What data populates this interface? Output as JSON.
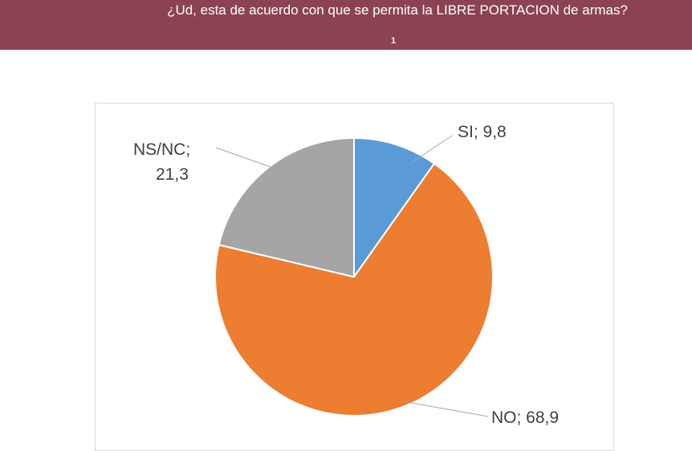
{
  "header": {
    "title": "¿Ud, esta de acuerdo con que se permita la LIBRE PORTACION de armas?",
    "page_number": "1",
    "background_color": "#8b4353"
  },
  "chart_data": {
    "type": "pie",
    "title": "",
    "slices": [
      {
        "category": "SI",
        "value": 9.8,
        "label": "SI; 9,8",
        "color": "#5b9bd5"
      },
      {
        "category": "NO",
        "value": 68.9,
        "label": "NO; 68,9",
        "color": "#ed7d31"
      },
      {
        "category": "NS/NC",
        "value": 21.3,
        "label_line1": "NS/NC;",
        "label_line2": "21,3",
        "color": "#a5a5a5"
      }
    ],
    "legend": "none",
    "data_labels": "outside with leader lines"
  }
}
